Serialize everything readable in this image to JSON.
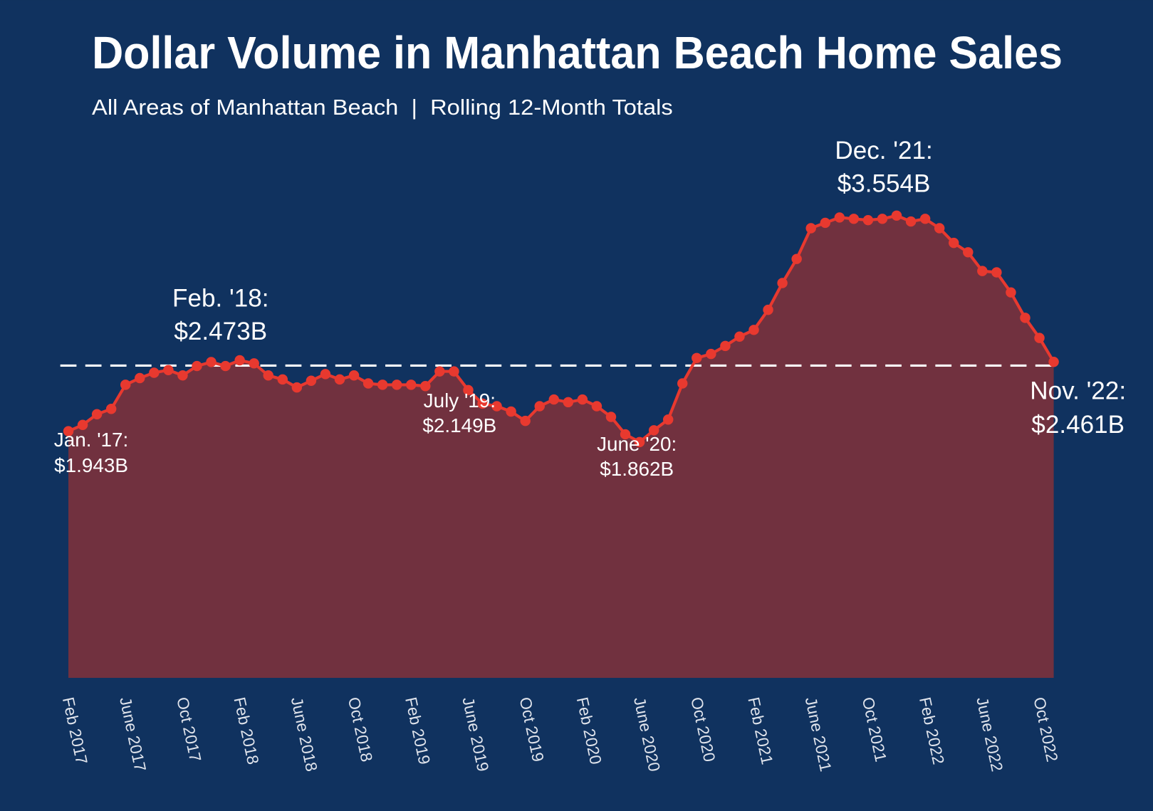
{
  "chart_data": {
    "type": "area",
    "title": "Dollar Volume in Manhattan Beach Home Sales",
    "subtitle": "All Areas of Manhattan Beach  |  Rolling 12-Month Totals",
    "categories": [
      "Feb 2017",
      null,
      null,
      null,
      "June 2017",
      null,
      null,
      null,
      "Oct 2017",
      null,
      null,
      null,
      "Feb 2018",
      null,
      null,
      null,
      "June 2018",
      null,
      null,
      null,
      "Oct 2018",
      null,
      null,
      null,
      "Feb 2019",
      null,
      null,
      null,
      "June 2019",
      null,
      null,
      null,
      "Oct 2019",
      null,
      null,
      null,
      "Feb 2020",
      null,
      null,
      null,
      "June 2020",
      null,
      null,
      null,
      "Oct 2020",
      null,
      null,
      null,
      "Feb 2021",
      null,
      null,
      null,
      "June 2021",
      null,
      null,
      null,
      "Oct 2021",
      null,
      null,
      null,
      "Feb 2022",
      null,
      null,
      null,
      "June 2022",
      null,
      null,
      null,
      "Oct 2022",
      null
    ],
    "series": [
      {
        "color": "#e8392f",
        "fill": "#71313f",
        "values": [
          1.943,
          1.99,
          2.07,
          2.11,
          2.29,
          2.34,
          2.38,
          2.4,
          2.36,
          2.43,
          2.46,
          2.43,
          2.473,
          2.45,
          2.36,
          2.33,
          2.27,
          2.32,
          2.37,
          2.33,
          2.36,
          2.3,
          2.29,
          2.29,
          2.29,
          2.28,
          2.39,
          2.39,
          2.25,
          2.149,
          2.13,
          2.09,
          2.02,
          2.13,
          2.18,
          2.16,
          2.18,
          2.13,
          2.05,
          1.92,
          1.862,
          1.95,
          2.03,
          2.3,
          2.49,
          2.52,
          2.58,
          2.65,
          2.7,
          2.85,
          3.05,
          3.23,
          3.46,
          3.5,
          3.54,
          3.53,
          3.52,
          3.53,
          3.554,
          3.51,
          3.53,
          3.46,
          3.35,
          3.28,
          3.14,
          3.13,
          2.98,
          2.79,
          2.64,
          2.461
        ]
      }
    ],
    "annotations": [
      {
        "label": "Jan. '17:",
        "value": "$1.943B"
      },
      {
        "label": "Feb. '18:",
        "value": "$2.473B"
      },
      {
        "label": "July '19:",
        "value": "$2.149B"
      },
      {
        "label": "June '20:",
        "value": "$1.862B"
      },
      {
        "label": "Dec. '21:",
        "value": "$3.554B"
      },
      {
        "label": "Nov. '22:",
        "value": "$2.461B"
      }
    ],
    "ylim": [
      0.1,
      4.0
    ]
  }
}
